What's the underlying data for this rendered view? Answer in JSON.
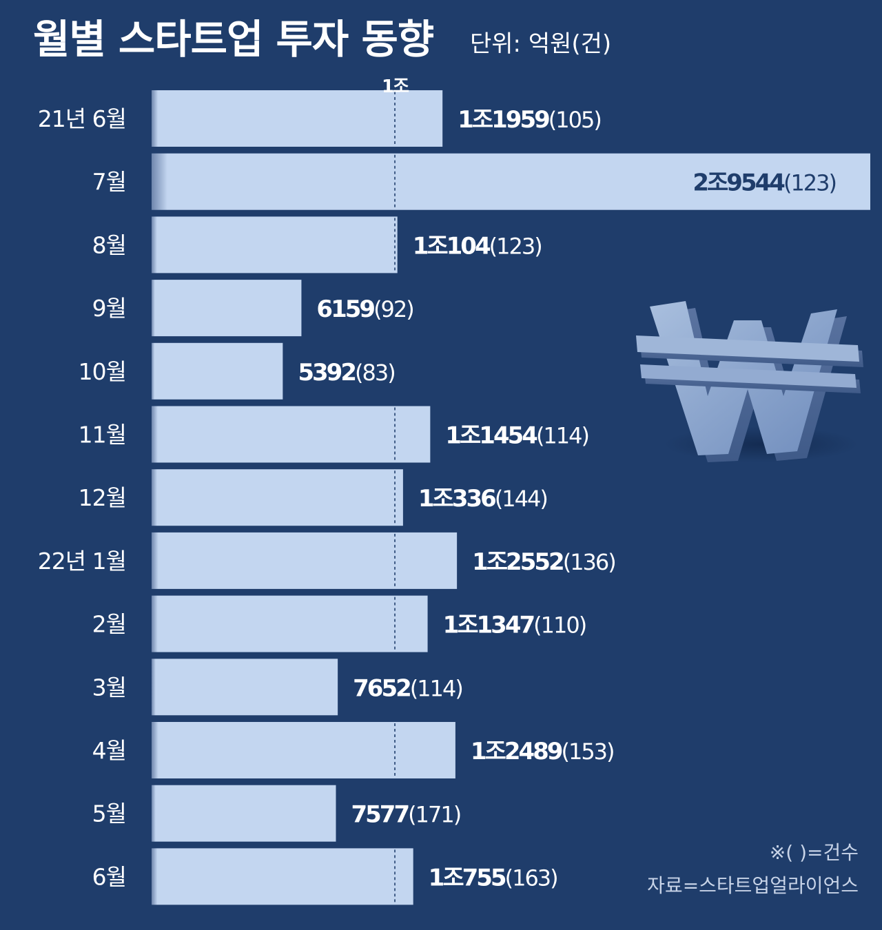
{
  "header": {
    "title": "월별 스타트업 투자 동향",
    "unit": "단위: 억원(건)"
  },
  "chart_data": {
    "type": "bar",
    "orientation": "horizontal",
    "title": "월별 스타트업 투자 동향",
    "unit_label": "단위: 억원(건)",
    "categories": [
      "21년 6월",
      "7월",
      "8월",
      "9월",
      "10월",
      "11월",
      "12월",
      "22년 1월",
      "2월",
      "3월",
      "4월",
      "5월",
      "6월"
    ],
    "values": [
      11959,
      29544,
      10104,
      6159,
      5392,
      11454,
      10336,
      12552,
      11347,
      7652,
      12489,
      7577,
      10755
    ],
    "value_labels": [
      "1조1959",
      "2조9544",
      "1조104",
      "6159",
      "5392",
      "1조1454",
      "1조336",
      "1조2552",
      "1조1347",
      "7652",
      "1조2489",
      "7577",
      "1조755"
    ],
    "count_labels": [
      "(105)",
      "(123)",
      "(123)",
      "(92)",
      "(83)",
      "(114)",
      "(144)",
      "(136)",
      "(110)",
      "(114)",
      "(153)",
      "(171)",
      "(163)"
    ],
    "reference_line": {
      "value": 10000,
      "label": "1조"
    },
    "xlim": [
      0,
      29544
    ],
    "grid": false,
    "legend": "none",
    "colors": {
      "background": "#1f3d6b",
      "bar": "#c3d6f0",
      "bar_shadow": "#6f86ad",
      "label_outside": "#ffffff",
      "label_inside": "#1f3d6b",
      "reference": "#1f3d6b"
    }
  },
  "footer": {
    "note": "※( )=건수",
    "source": "자료=스타트업얼라이언스"
  },
  "decoration": {
    "icon": "won-sign-3d-icon"
  }
}
